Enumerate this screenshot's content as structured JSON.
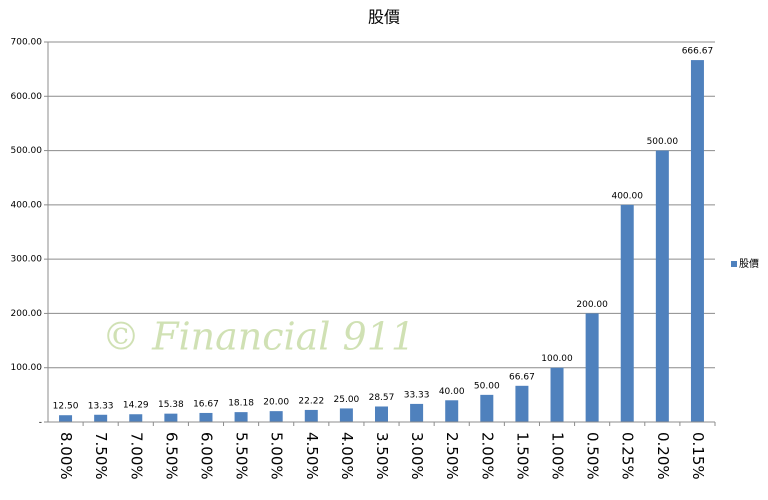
{
  "chart_data": {
    "type": "bar",
    "title": "股價",
    "categories": [
      "8.00%",
      "7.50%",
      "7.00%",
      "6.50%",
      "6.00%",
      "5.50%",
      "5.00%",
      "4.50%",
      "4.00%",
      "3.50%",
      "3.00%",
      "2.50%",
      "2.00%",
      "1.50%",
      "1.00%",
      "0.50%",
      "0.25%",
      "0.20%",
      "0.15%"
    ],
    "series": [
      {
        "name": "股價",
        "color": "#4f81bd",
        "values": [
          12.5,
          13.33,
          14.29,
          15.38,
          16.67,
          18.18,
          20,
          22.22,
          25,
          28.57,
          33.33,
          40,
          50,
          66.67,
          100,
          200,
          400,
          500,
          666.67
        ],
        "value_labels": [
          "12.50",
          "13.33",
          "14.29",
          "15.38",
          "16.67",
          "18.18",
          "20.00",
          "22.22",
          "25.00",
          "28.57",
          "33.33",
          "40.00",
          "50.00",
          "66.67",
          "100.00",
          "200.00",
          "400.00",
          "500.00",
          "666.67"
        ]
      }
    ],
    "ylim": [
      0,
      700
    ],
    "yticks": [
      {
        "value": 0,
        "label": "-"
      },
      {
        "value": 100,
        "label": "100.00"
      },
      {
        "value": 200,
        "label": "200.00"
      },
      {
        "value": 300,
        "label": "300.00"
      },
      {
        "value": 400,
        "label": "400.00"
      },
      {
        "value": 500,
        "label": "500.00"
      },
      {
        "value": 600,
        "label": "600.00"
      },
      {
        "value": 700,
        "label": "700.00"
      }
    ],
    "grid": true,
    "legend": "right",
    "annotation": "© Financial 911"
  }
}
